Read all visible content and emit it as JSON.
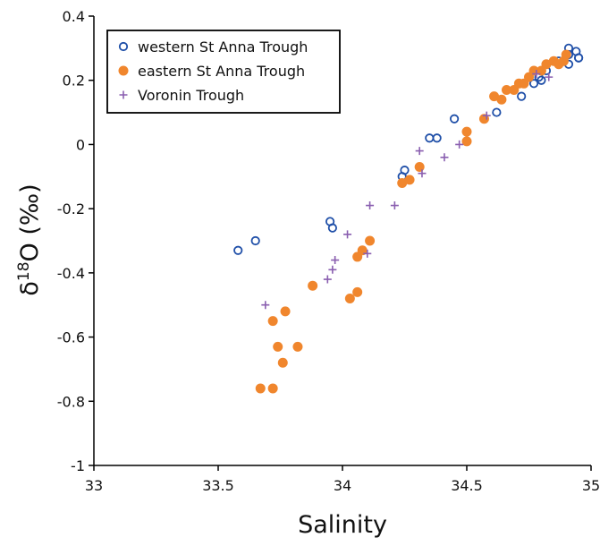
{
  "chart_data": {
    "type": "scatter",
    "x_label": "Salinity",
    "y_label": {
      "prefix": "δ",
      "sup": "18",
      "suffix": "O (‰)"
    },
    "xlim": [
      33,
      35
    ],
    "xticks": [
      33,
      33.5,
      34,
      34.5,
      35
    ],
    "ylim": [
      -1,
      0.4
    ],
    "yticks": [
      -1,
      -0.8,
      -0.6,
      -0.4,
      -0.2,
      0,
      0.2,
      0.4
    ],
    "legend": "upper left",
    "series": [
      {
        "name": "western St Anna Trough",
        "color": "#1f4fa8",
        "marker": "open-circle",
        "x": [
          33.58,
          33.65,
          33.95,
          33.96,
          34.24,
          34.25,
          34.35,
          34.38,
          34.45,
          34.62,
          34.72,
          34.77,
          34.79,
          34.8,
          34.82,
          34.87,
          34.91,
          34.94,
          34.91,
          34.91,
          34.95,
          34.95
        ],
        "values": [
          -0.33,
          -0.3,
          -0.24,
          -0.26,
          -0.1,
          -0.08,
          0.02,
          0.02,
          0.08,
          0.1,
          0.15,
          0.19,
          0.21,
          0.2,
          0.23,
          0.26,
          0.3,
          0.29,
          0.28,
          0.25,
          0.27,
          0.27
        ]
      },
      {
        "name": "eastern St Anna Trough",
        "color": "#f0862d",
        "marker": "filled-circle",
        "x": [
          33.67,
          33.72,
          33.72,
          33.74,
          33.76,
          33.77,
          33.82,
          33.88,
          34.03,
          34.06,
          34.06,
          34.08,
          34.11,
          34.24,
          34.27,
          34.31,
          34.5,
          34.5,
          34.57,
          34.61,
          34.64,
          34.66,
          34.69,
          34.71,
          34.73,
          34.75,
          34.77,
          34.8,
          34.82,
          34.85,
          34.87,
          34.89,
          34.9
        ],
        "values": [
          -0.76,
          -0.76,
          -0.55,
          -0.63,
          -0.68,
          -0.52,
          -0.63,
          -0.44,
          -0.48,
          -0.46,
          -0.35,
          -0.33,
          -0.3,
          -0.12,
          -0.11,
          -0.07,
          0.01,
          0.04,
          0.08,
          0.15,
          0.14,
          0.17,
          0.17,
          0.19,
          0.19,
          0.21,
          0.23,
          0.23,
          0.25,
          0.26,
          0.25,
          0.26,
          0.28
        ]
      },
      {
        "name": "Voronin Trough",
        "color": "#8a5fb0",
        "marker": "plus",
        "x": [
          33.69,
          33.94,
          33.96,
          33.97,
          34.02,
          34.1,
          34.11,
          34.21,
          34.31,
          34.32,
          34.41,
          34.47,
          34.58,
          34.78,
          34.83
        ],
        "values": [
          -0.5,
          -0.42,
          -0.39,
          -0.36,
          -0.28,
          -0.34,
          -0.19,
          -0.19,
          -0.02,
          -0.09,
          -0.04,
          0.0,
          0.09,
          0.22,
          0.21
        ]
      }
    ]
  }
}
